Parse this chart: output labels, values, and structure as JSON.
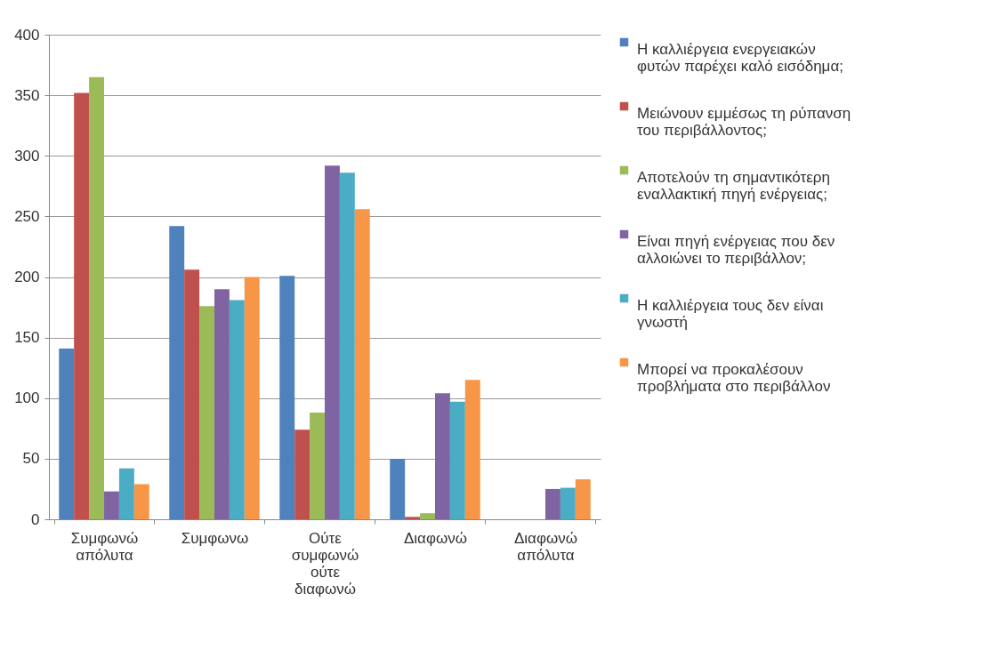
{
  "chart_data": {
    "type": "bar",
    "categories": [
      "Συμφωνώ απόλυτα",
      "Συμφωνω",
      "Ούτε συμφωνώ ούτε διαφωνώ",
      "Διαφωνώ",
      "Διαφωνώ απόλυτα"
    ],
    "series": [
      {
        "name": "Η καλλιέργεια ενεργειακών φυτών παρέχει καλό εισόδημα;",
        "color": "#4f81bd",
        "values": [
          141,
          242,
          201,
          50,
          0
        ]
      },
      {
        "name": "Μειώνουν εμμέσως τη ρύπανση του περιβάλλοντος;",
        "color": "#c0504d",
        "values": [
          352,
          206,
          74,
          2,
          0
        ]
      },
      {
        "name": "Αποτελούν τη σημαντικότερη εναλλακτική πηγή ενέργειας;",
        "color": "#9bbb59",
        "values": [
          365,
          176,
          88,
          5,
          0
        ]
      },
      {
        "name": "Είναι πηγή ενέργειας που δεν αλλοιώνει το περιβάλλον;",
        "color": "#8064a2",
        "values": [
          23,
          190,
          292,
          104,
          25
        ]
      },
      {
        "name": "Η καλλιέργεια τους δεν είναι γνωστή",
        "color": "#4bacc6",
        "values": [
          42,
          181,
          286,
          97,
          26
        ]
      },
      {
        "name": "Μπορεί να προκαλέσουν προβλήματα στο περιβάλλον",
        "color": "#f79646",
        "values": [
          29,
          200,
          256,
          115,
          33
        ]
      }
    ],
    "ylim": [
      0,
      400
    ],
    "yticks": [
      0,
      50,
      100,
      150,
      200,
      250,
      300,
      350,
      400
    ],
    "grid": "y",
    "legend": "right"
  }
}
